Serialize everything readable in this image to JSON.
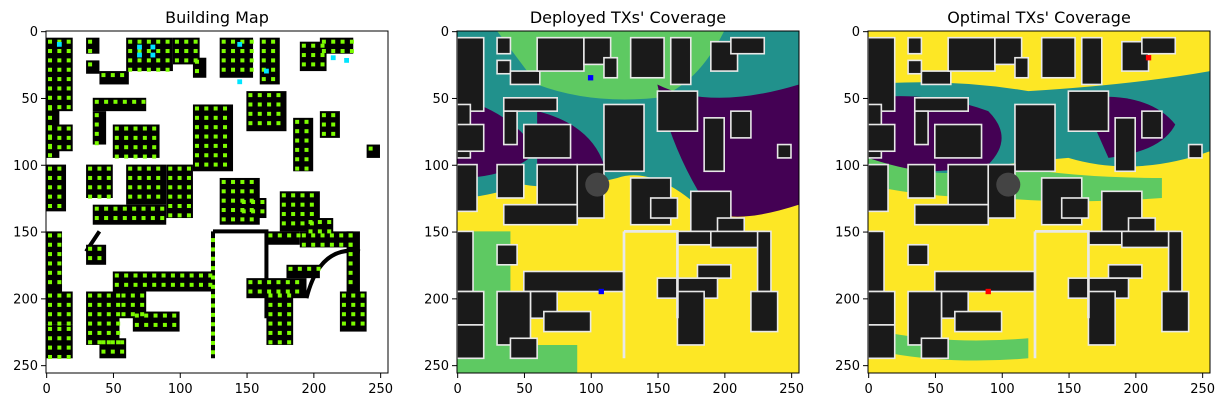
{
  "figure": {
    "panel_titles": [
      "Building Map",
      "Deployed TXs' Coverage",
      "Optimal TXs' Coverage"
    ]
  },
  "colors": {
    "building": "#000000",
    "building_dark": "#1a1a1a",
    "building_outline": "#e8e8e8",
    "grid_point": "#7cfc00",
    "tx_cyan": "#00e5ff",
    "cov_yellow": "#fde725",
    "cov_lightgreen": "#5ec962",
    "cov_teal": "#21918c",
    "cov_blue": "#3b528b",
    "cov_purple": "#440154",
    "tx_deployed": "#0000ff",
    "tx_optimal": "#ff0000"
  },
  "chart_data": [
    {
      "type": "heatmap",
      "title": "Building Map",
      "x_ticks": [
        0,
        50,
        100,
        150,
        200,
        250
      ],
      "y_ticks": [
        0,
        50,
        100,
        150,
        200,
        250
      ],
      "xlim": [
        0,
        255
      ],
      "ylim": [
        255,
        0
      ],
      "candidate_tx_points": [
        [
          10,
          10
        ],
        [
          70,
          12
        ],
        [
          80,
          12
        ],
        [
          70,
          18
        ],
        [
          80,
          18
        ],
        [
          145,
          10
        ],
        [
          145,
          38
        ],
        [
          165,
          30
        ],
        [
          215,
          20
        ],
        [
          225,
          22
        ]
      ]
    },
    {
      "type": "heatmap",
      "title": "Deployed TXs' Coverage",
      "x_ticks": [
        0,
        50,
        100,
        150,
        200,
        250
      ],
      "y_ticks": [
        0,
        50,
        100,
        150,
        200,
        250
      ],
      "xlim": [
        0,
        255
      ],
      "ylim": [
        255,
        0
      ],
      "tx_points": [
        [
          100,
          35
        ],
        [
          108,
          195
        ]
      ]
    },
    {
      "type": "heatmap",
      "title": "Optimal TXs' Coverage",
      "x_ticks": [
        0,
        50,
        100,
        150,
        200,
        250
      ],
      "y_ticks": [
        0,
        50,
        100,
        150,
        200,
        250
      ],
      "xlim": [
        0,
        255
      ],
      "ylim": [
        255,
        0
      ],
      "tx_points": [
        [
          210,
          20
        ],
        [
          90,
          195
        ]
      ]
    }
  ]
}
